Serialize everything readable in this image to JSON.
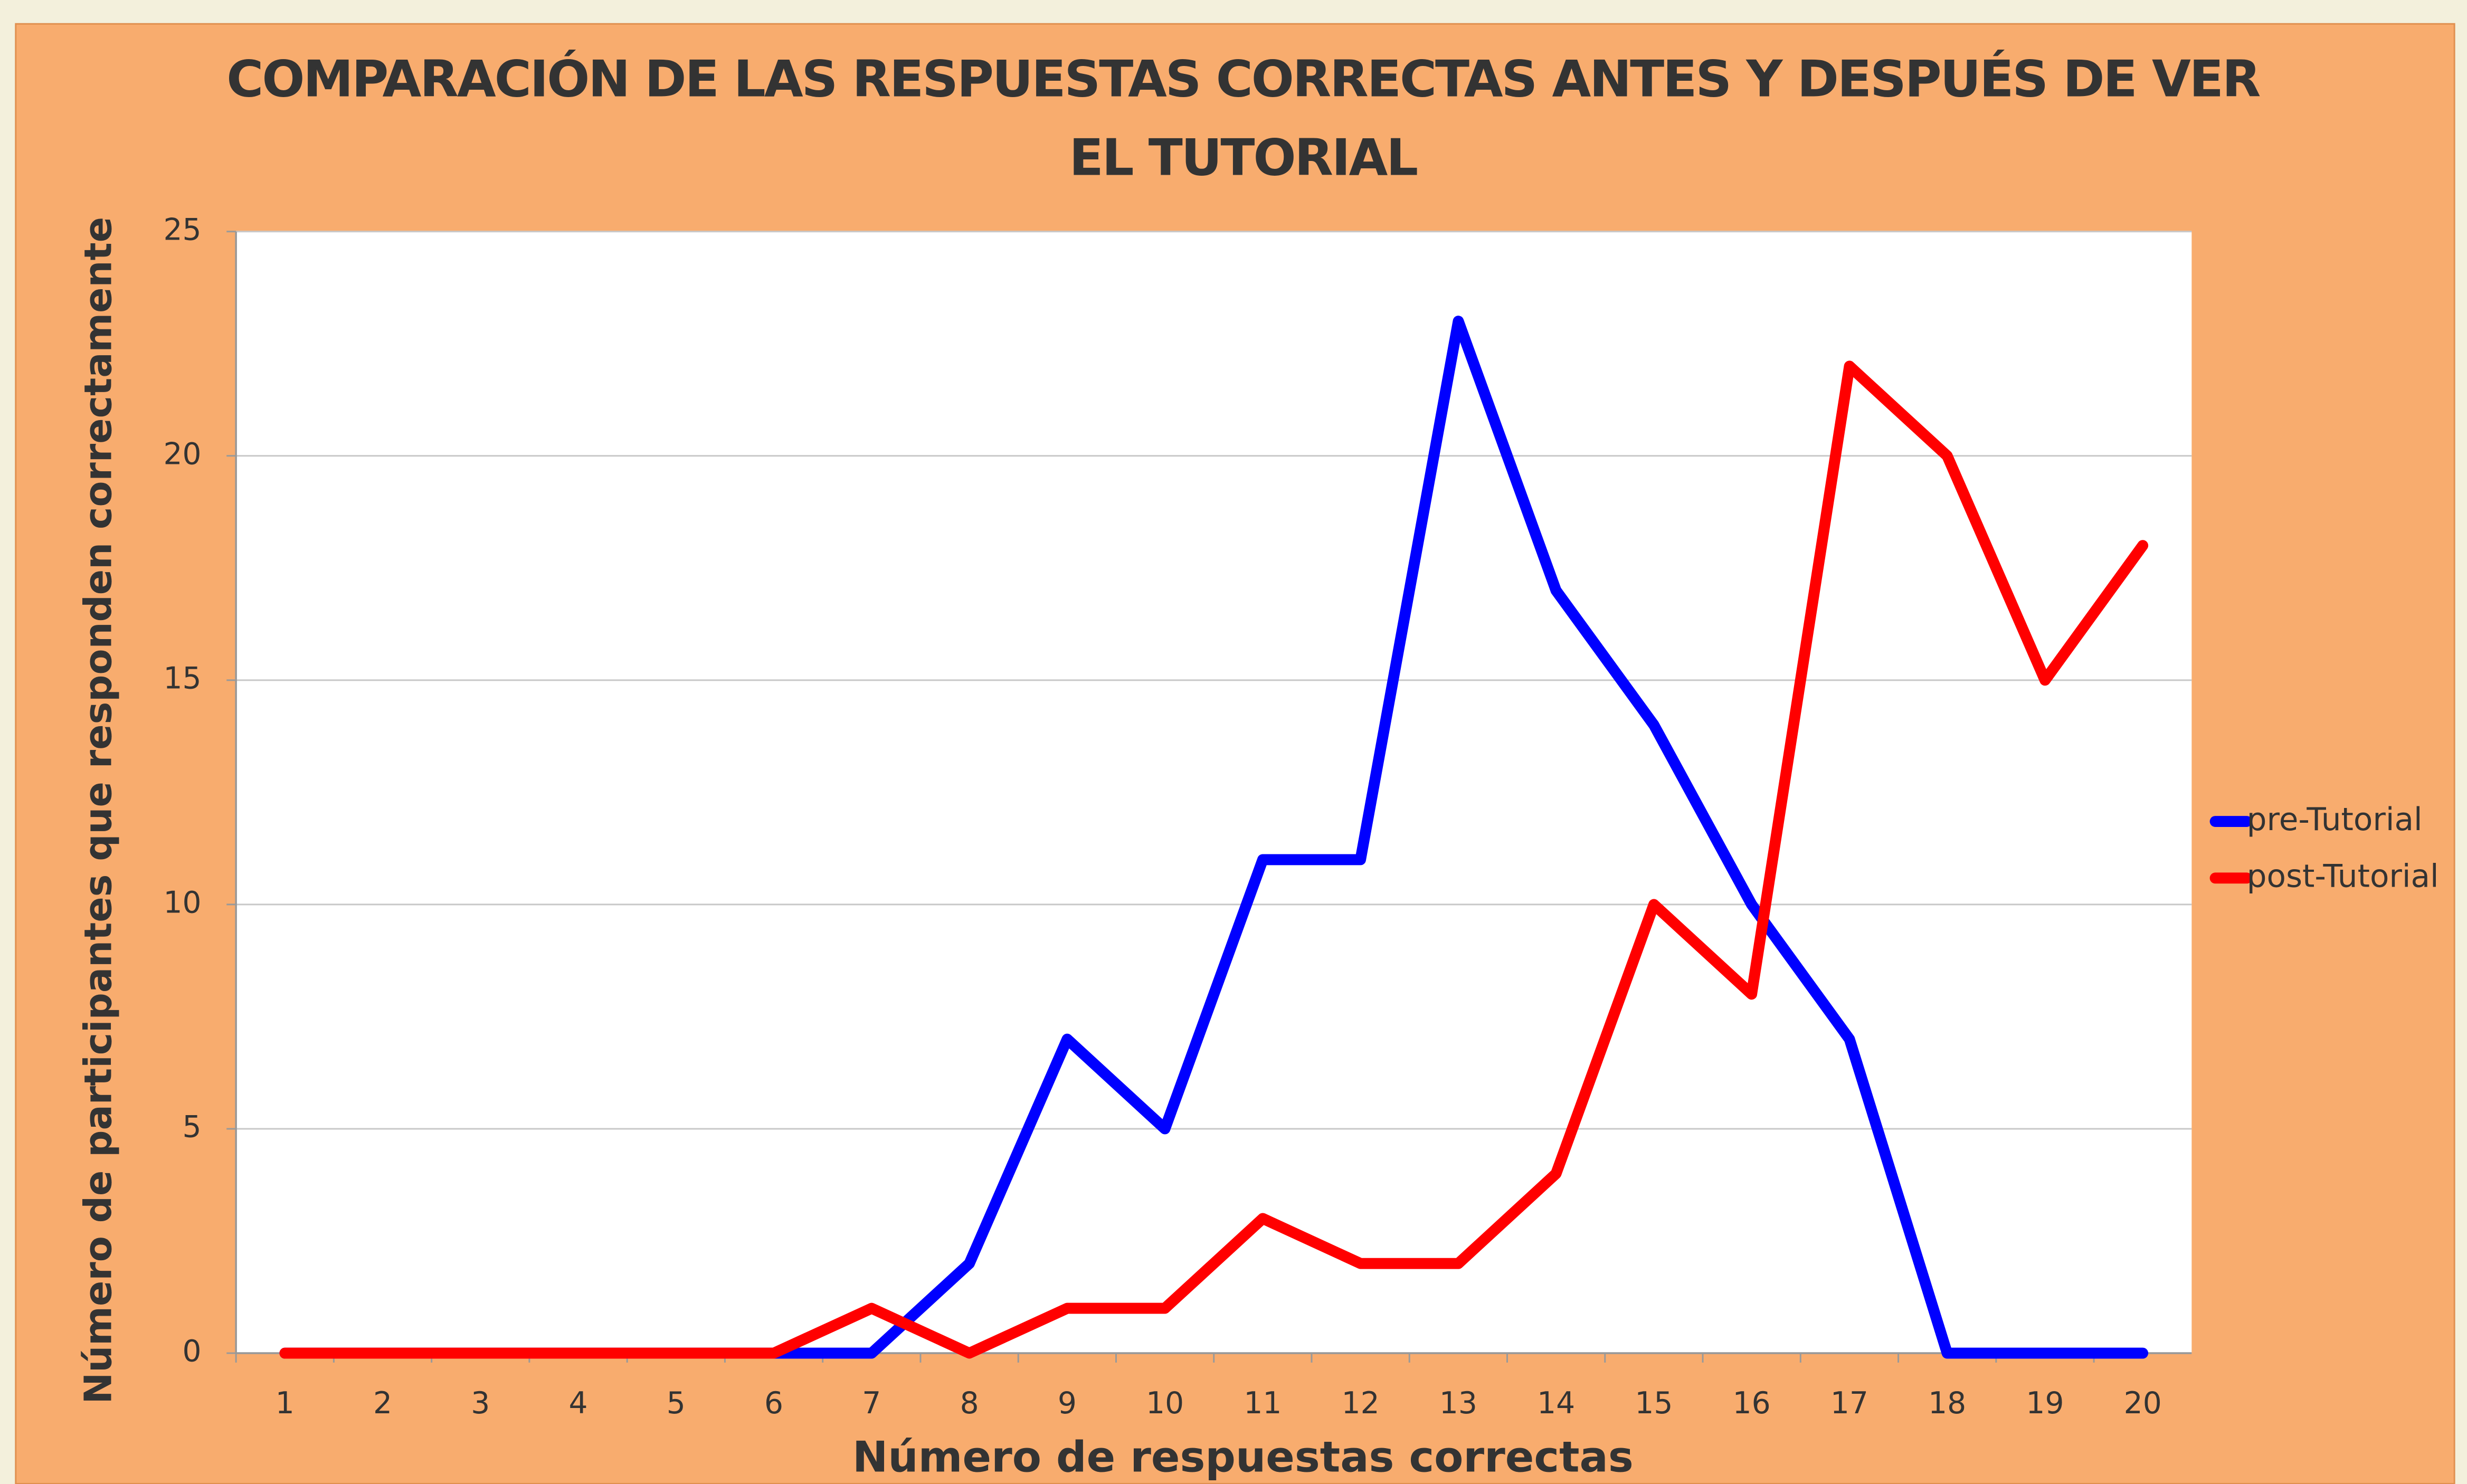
{
  "chart_data": {
    "type": "line",
    "title": "COMPARACIÓN DE LAS RESPUESTAS CORRECTAS ANTES Y DESPUÉS DE VER EL TUTORIAL",
    "xlabel": "Número de respuestas correctas",
    "ylabel": "Número de participantes que responden correctamente",
    "categories": [
      "1",
      "2",
      "3",
      "4",
      "5",
      "6",
      "7",
      "8",
      "9",
      "10",
      "11",
      "12",
      "13",
      "14",
      "15",
      "16",
      "17",
      "18",
      "19",
      "20"
    ],
    "series": [
      {
        "name": "pre-Tutorial",
        "color": "#0000ff",
        "values": [
          0,
          0,
          0,
          0,
          0,
          0,
          0,
          2,
          7,
          5,
          11,
          11,
          23,
          17,
          14,
          10,
          7,
          0,
          0,
          0
        ]
      },
      {
        "name": "post-Tutorial",
        "color": "#ff0000",
        "values": [
          0,
          0,
          0,
          0,
          0,
          0,
          1,
          0,
          1,
          1,
          3,
          2,
          2,
          4,
          10,
          8,
          22,
          20,
          15,
          18
        ]
      }
    ],
    "ylim": [
      0,
      25
    ],
    "yticks": [
      0,
      5,
      10,
      15,
      20,
      25
    ],
    "grid": true,
    "legend": "right"
  }
}
